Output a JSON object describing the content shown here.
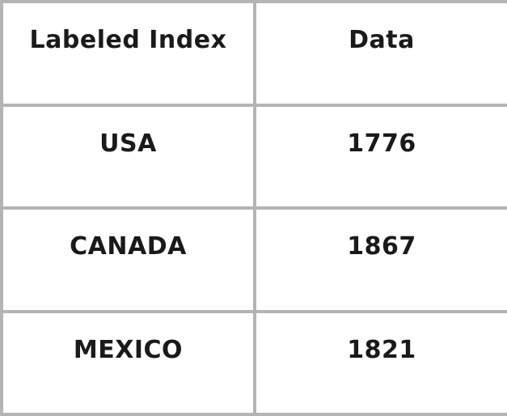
{
  "table": {
    "headers": [
      "Labeled Index",
      "Data"
    ],
    "rows": [
      [
        "USA",
        "1776"
      ],
      [
        "CANADA",
        "1867"
      ],
      [
        "MEXICO",
        "1821"
      ]
    ]
  },
  "colors": {
    "border": "#b4b4b4",
    "text": "#1a1a1a",
    "background": "#ffffff"
  }
}
